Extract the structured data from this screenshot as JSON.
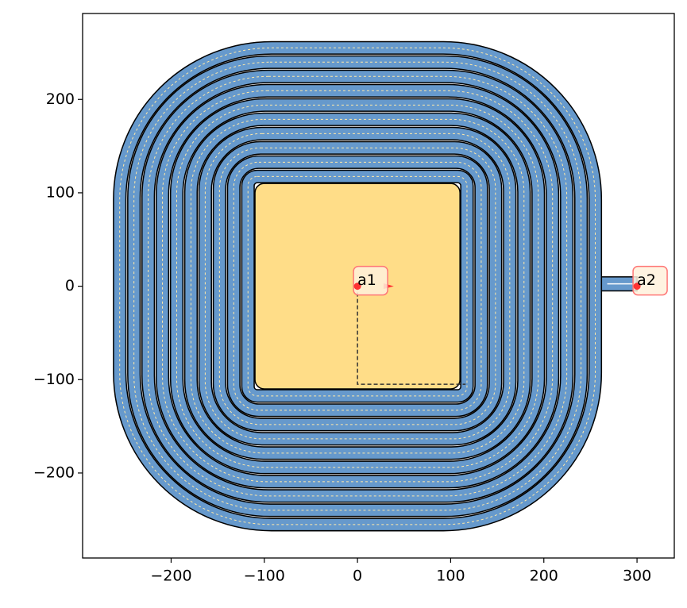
{
  "chart_data": {
    "type": "layout",
    "xlim": [
      -295,
      340
    ],
    "ylim": [
      -291,
      292
    ],
    "xticks": [
      {
        "value": -200,
        "label": "−200"
      },
      {
        "value": -100,
        "label": "−100"
      },
      0,
      100,
      200,
      300
    ],
    "yticks": [
      {
        "value": -200,
        "label": "−200"
      },
      {
        "value": -100,
        "label": "−100"
      },
      0,
      100,
      200
    ],
    "ports": [
      {
        "name": "a1",
        "x": 0,
        "y": 0
      },
      {
        "name": "a2",
        "x": 300,
        "y": 0
      }
    ],
    "color": "#6699cc",
    "pad_color": "#ffdd88",
    "port_color": "#ff3333"
  }
}
